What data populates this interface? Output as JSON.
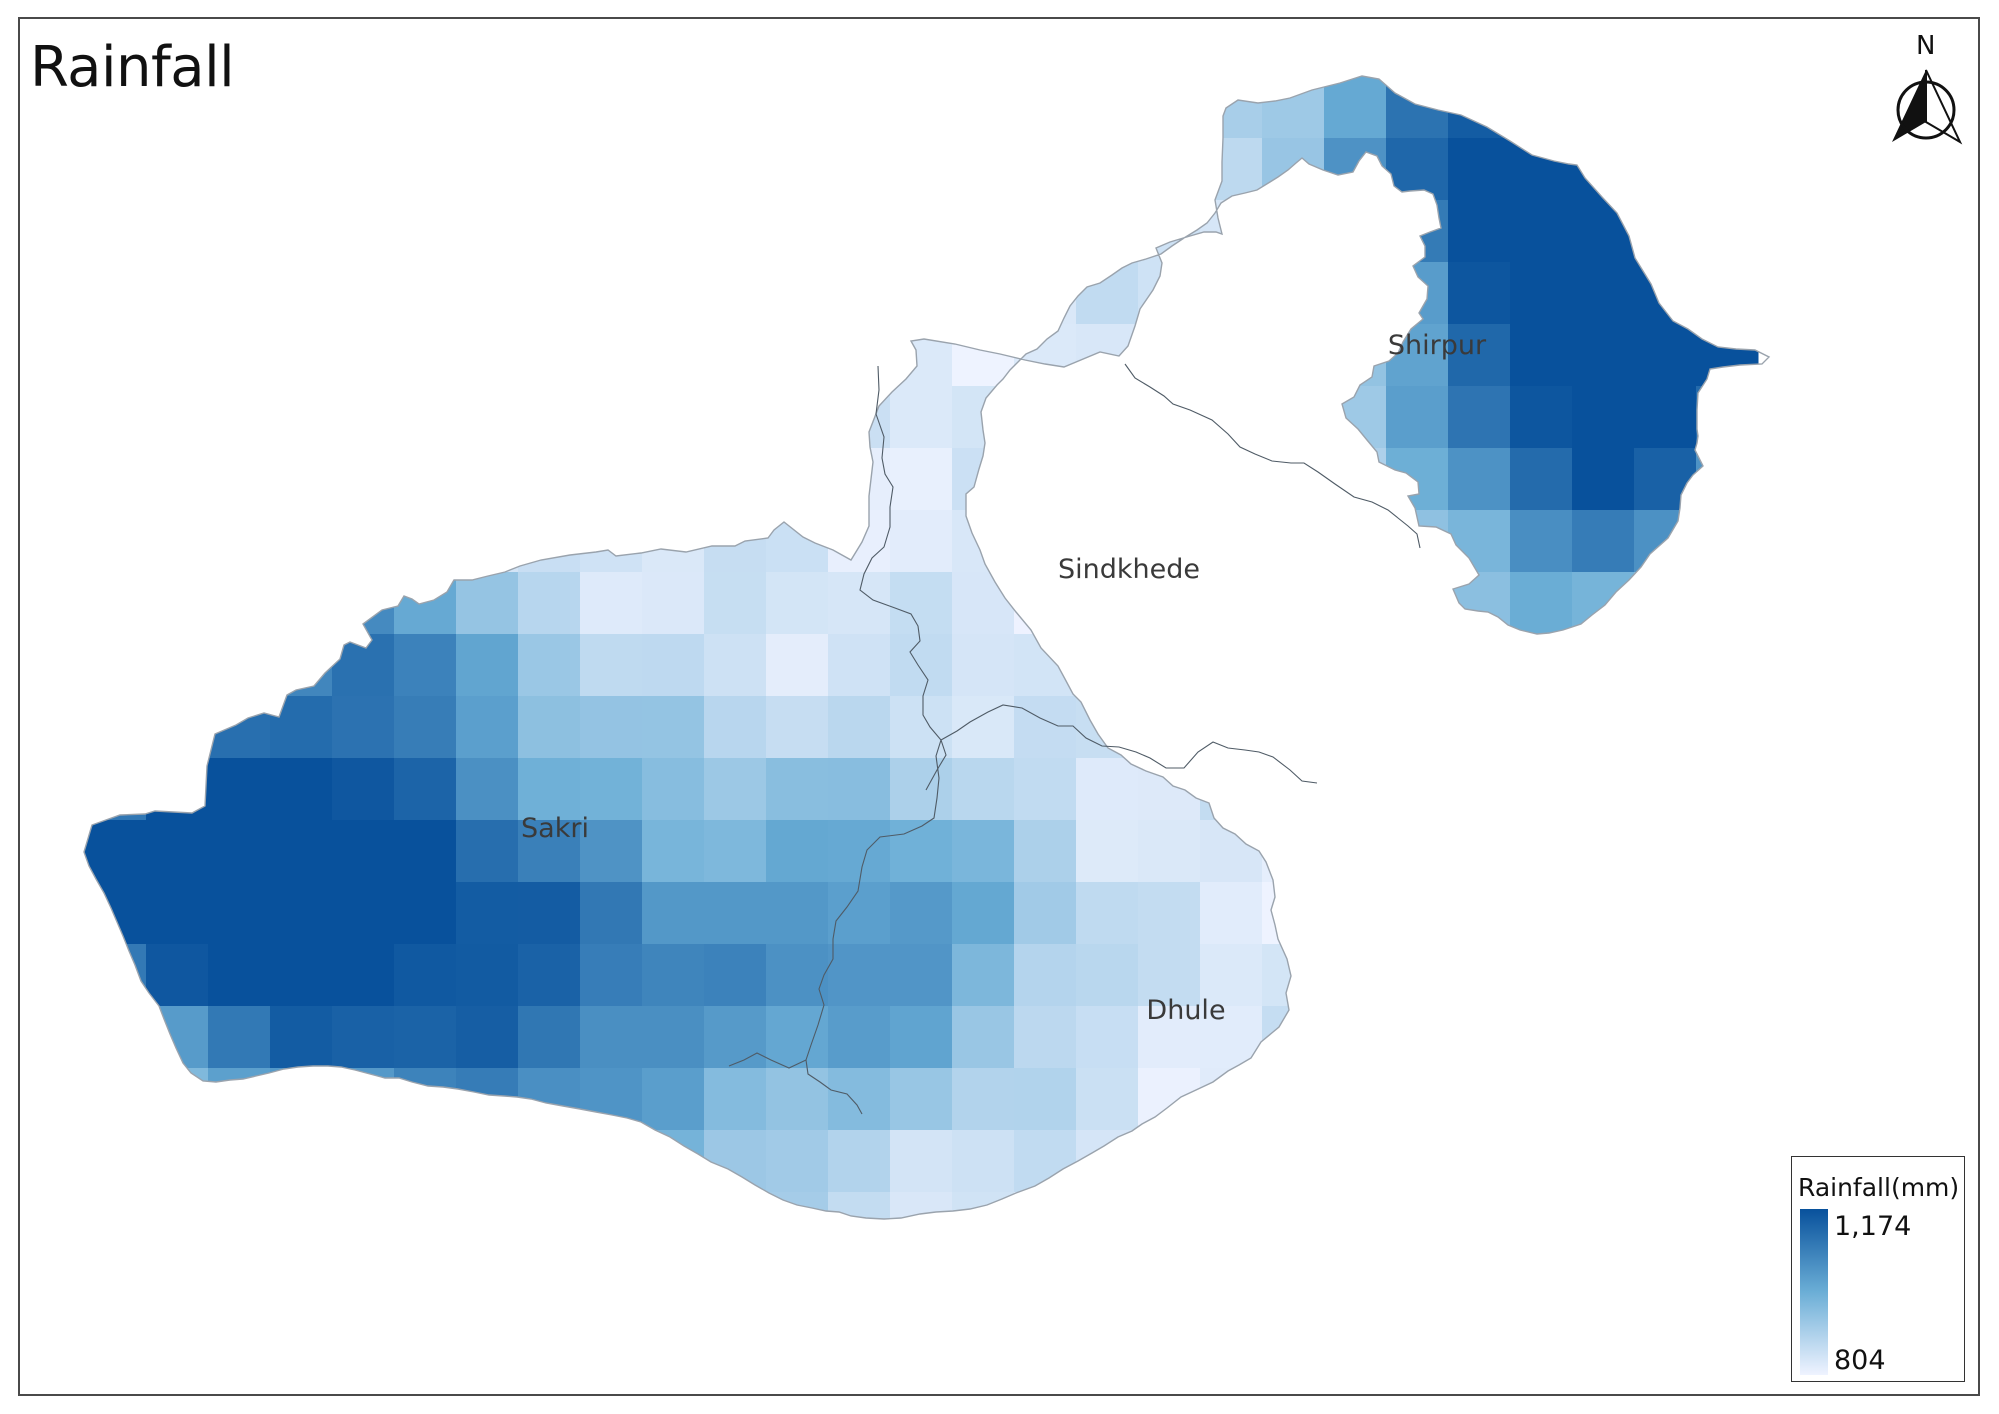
{
  "title": "Rainfall",
  "north_arrow": {
    "label": "N",
    "icon": "north-arrow-icon"
  },
  "places": [
    {
      "name": "Shirpur"
    },
    {
      "name": "Sindkhede"
    },
    {
      "name": "Sakri"
    },
    {
      "name": "Dhule"
    }
  ],
  "legend": {
    "title": "Rainfall(mm)",
    "max_label": "1,174",
    "min_label": "804",
    "color_high": "#08519c",
    "color_low": "#eff3ff"
  }
}
